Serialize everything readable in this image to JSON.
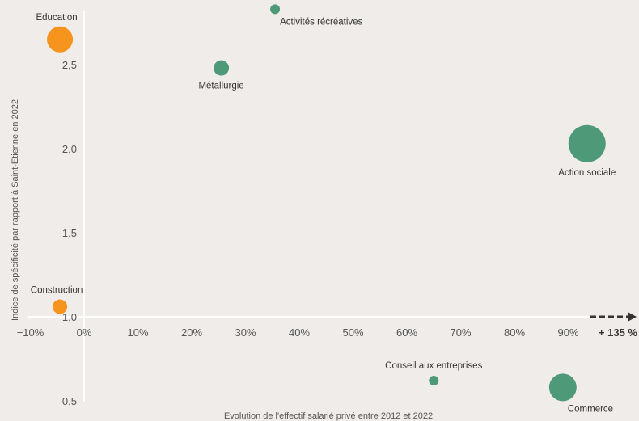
{
  "chart_data": {
    "type": "scatter",
    "xlabel": "Evolution de l'effectif salarié privé entre 2012 et 2022",
    "ylabel": "Indice de spécificité par rapport à Saint-Etienne en 2022",
    "xlim": [
      -10,
      95
    ],
    "ylim": [
      0.5,
      2.85
    ],
    "x_ticks": [
      "−10%",
      "0%",
      "10%",
      "20%",
      "30%",
      "40%",
      "50%",
      "60%",
      "70%",
      "80%",
      "90%"
    ],
    "x_tick_values": [
      -10,
      0,
      10,
      20,
      30,
      40,
      50,
      60,
      70,
      80,
      90
    ],
    "y_ticks": [
      "0,5",
      "1,0",
      "1,5",
      "2,0",
      "2,5"
    ],
    "y_tick_values": [
      0.5,
      1.0,
      1.5,
      2.0,
      2.5
    ],
    "x_axis_crosses_y": 1.0,
    "grid": false,
    "overflow_label": "+ 135 %",
    "colors": {
      "declining": "#f7941d",
      "growing": "#4e9a78"
    },
    "points": [
      {
        "label": "Education",
        "x": -4.5,
        "y": 2.65,
        "size": 16,
        "color": "#f7941d",
        "label_pos": "top-left"
      },
      {
        "label": "Activités récréatives",
        "x": 35.5,
        "y": 2.83,
        "size": 6,
        "color": "#4e9a78",
        "label_pos": "bottom-right"
      },
      {
        "label": "Métallurgie",
        "x": 25.5,
        "y": 2.48,
        "size": 9.5,
        "color": "#4e9a78",
        "label_pos": "bottom"
      },
      {
        "label": "Action sociale",
        "x": 93.5,
        "y": 2.03,
        "size": 23,
        "color": "#4e9a78",
        "label_pos": "bottom"
      },
      {
        "label": "Construction",
        "x": -4.5,
        "y": 1.06,
        "size": 9,
        "color": "#f7941d",
        "label_pos": "top-left"
      },
      {
        "label": "Conseil aux entreprises",
        "x": 65,
        "y": 0.62,
        "size": 6,
        "color": "#4e9a78",
        "label_pos": "top"
      },
      {
        "label": "Commerce",
        "x": 89,
        "y": 0.58,
        "size": 17,
        "color": "#4e9a78",
        "label_pos": "bottom-right"
      }
    ]
  }
}
